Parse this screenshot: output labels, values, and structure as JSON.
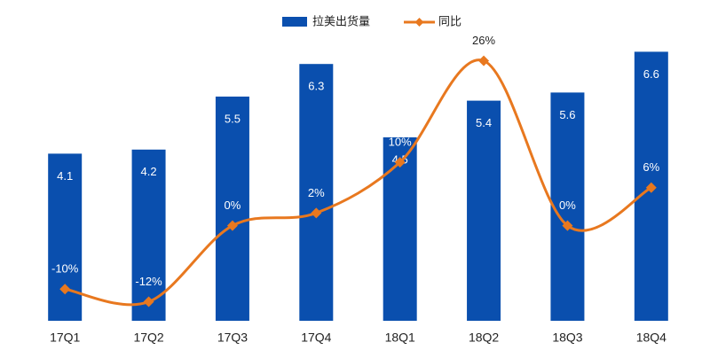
{
  "chart_data": {
    "type": "bar-line",
    "categories": [
      "17Q1",
      "17Q2",
      "17Q3",
      "17Q4",
      "18Q1",
      "18Q2",
      "18Q3",
      "18Q4"
    ],
    "series": [
      {
        "name": "拉美出货量",
        "color": "#0a4fae",
        "type": "bar",
        "values": [
          4.1,
          4.2,
          5.5,
          6.3,
          4.5,
          5.4,
          5.6,
          6.6
        ]
      },
      {
        "name": "同比",
        "color": "#e8781f",
        "type": "line",
        "axis": "y2",
        "values": [
          -10,
          -12,
          0,
          2,
          10,
          26,
          0,
          6
        ],
        "value_labels": [
          "-10%",
          "-12%",
          "0%",
          "2%",
          "10%",
          "26%",
          "0%",
          "6%"
        ]
      }
    ],
    "ylim": [
      0,
      7
    ],
    "y2lim": [
      -15,
      30
    ],
    "legend": "top"
  }
}
